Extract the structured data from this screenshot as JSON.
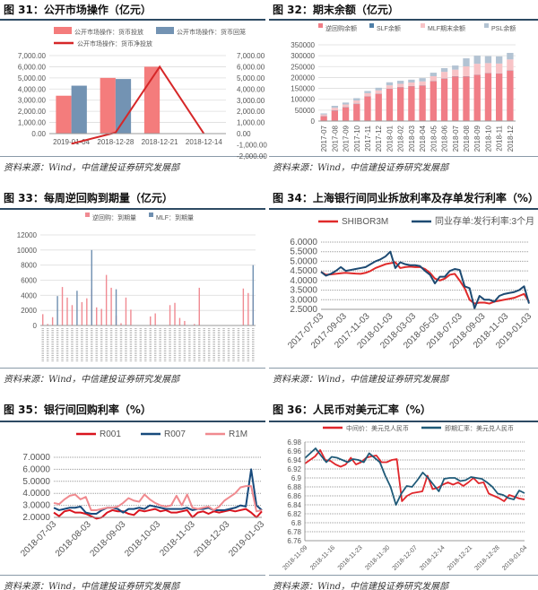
{
  "source": "资料来源：Wind，中信建投证券研究发展部",
  "chart_data": [
    {
      "id": "c31",
      "title": "图 31：公开市场操作（亿元）",
      "type": "bar+line",
      "categories": [
        "2019-01-04",
        "2018-12-28",
        "2018-12-21",
        "2018-12-14"
      ],
      "series": [
        {
          "name": "公开市场操作：货币投放",
          "kind": "bar",
          "axis": "left",
          "color": "#f47c7c",
          "values": [
            3400,
            5000,
            6000,
            0
          ]
        },
        {
          "name": "公开市场操作：货币回笼",
          "kind": "bar",
          "axis": "left",
          "color": "#7393b3",
          "values": [
            4300,
            4900,
            0,
            0
          ]
        },
        {
          "name": "公开市场操作：货币净投放",
          "kind": "line",
          "axis": "right",
          "color": "#d62728",
          "values": [
            -900,
            100,
            6000,
            0
          ]
        }
      ],
      "yticks": [
        "7,000.00",
        "6,000.00",
        "5,000.00",
        "4,000.00",
        "3,000.00",
        "2,000.00",
        "1,000.00",
        "0.00"
      ],
      "y2ticks": [
        "7,000.00",
        "6,000.00",
        "5,000.00",
        "4,000.00",
        "3,000.00",
        "2,000.00",
        "1,000.00",
        "0.00",
        "-1,000.00",
        "-2,000.00"
      ],
      "ylim": [
        0,
        7000
      ],
      "y2lim": [
        -2000,
        7000
      ]
    },
    {
      "id": "c32",
      "title": "图 32：期末余额（亿元）",
      "type": "stacked-bar",
      "categories": [
        "2017-07",
        "2017-08",
        "2017-09",
        "2017-10",
        "2017-11",
        "2017-12",
        "2018-01",
        "2018-02",
        "2018-03",
        "2018-04",
        "2018-05",
        "2018-06",
        "2018-07",
        "2018-08",
        "2018-09",
        "2018-10",
        "2018-11",
        "2018-12"
      ],
      "series": [
        {
          "name": "逆回购余额",
          "color": "#f07d86",
          "values": [
            22000,
            48000,
            63000,
            78000,
            113000,
            125000,
            148000,
            155000,
            160000,
            163000,
            183000,
            195000,
            205000,
            205000,
            212000,
            220000,
            218000,
            232000
          ]
        },
        {
          "name": "SLF余额",
          "color": "#4f7fa8",
          "values": [
            1000,
            1000,
            1000,
            1500,
            1000,
            1000,
            1000,
            1000,
            1000,
            1000,
            1000,
            1000,
            1000,
            1000,
            1000,
            1000,
            1000,
            1000
          ]
        },
        {
          "name": "MLF期末余额",
          "color": "#f8c3c6",
          "values": [
            7000,
            12000,
            12000,
            15000,
            14000,
            15000,
            15000,
            15000,
            16000,
            18000,
            22000,
            30000,
            30000,
            45000,
            50000,
            45000,
            45000,
            50000
          ]
        },
        {
          "name": "PSL余额",
          "color": "#b3c3d3",
          "values": [
            5000,
            9000,
            9000,
            10500,
            10000,
            12000,
            14000,
            14000,
            13000,
            15000,
            16000,
            17000,
            19000,
            37000,
            37000,
            32000,
            33000,
            30000
          ]
        }
      ],
      "yticks": [
        "350000",
        "300000",
        "250000",
        "200000",
        "150000",
        "100000",
        "50000",
        "0"
      ],
      "ylim": [
        0,
        350000
      ]
    },
    {
      "id": "c33",
      "title": "图 33：每周逆回购到期量（亿元）",
      "type": "bar",
      "series": [
        {
          "name": "逆回购：到期量",
          "color": "#f08a92",
          "values": [
            1500,
            200,
            1100,
            0,
            5100,
            3700,
            2700,
            0,
            3100,
            3600,
            4900,
            2400,
            2200,
            6700,
            5000,
            1300,
            300,
            3700,
            2100,
            0,
            0,
            0,
            1200,
            1600,
            0,
            0,
            2700,
            3000,
            1000,
            600,
            0,
            200,
            5000,
            0,
            0,
            0,
            0,
            0,
            0,
            0,
            0,
            4900,
            4300,
            4000
          ]
        },
        {
          "name": "MLF：到期量",
          "color": "#6f8fb0",
          "values": [
            0,
            0,
            0,
            3900,
            0,
            0,
            0,
            4600,
            0,
            0,
            10000,
            0,
            0,
            0,
            0,
            4800,
            0,
            0,
            0,
            0,
            0,
            0,
            0,
            0,
            0,
            0,
            0,
            0,
            0,
            0,
            0,
            0,
            0,
            0,
            0,
            0,
            0,
            0,
            0,
            0,
            0,
            0,
            0,
            8000
          ]
        }
      ],
      "yticks": [
        "12000",
        "10000",
        "8000",
        "6000",
        "4000",
        "2000",
        "0"
      ],
      "ylim": [
        0,
        12000
      ]
    },
    {
      "id": "c34",
      "title": "图 34：上海银行间同业拆放利率及存单发行利率（%）",
      "type": "line",
      "xticks": [
        "2017-07-03",
        "2017-09-03",
        "2017-11-03",
        "2018-01-03",
        "2018-03-03",
        "2018-05-03",
        "2018-07-03",
        "2018-09-03",
        "2018-11-03",
        "2019-01-03"
      ],
      "series": [
        {
          "name": "SHIBOR3M",
          "color": "#e02a2a",
          "values": [
            4.45,
            4.3,
            4.32,
            4.35,
            4.38,
            4.4,
            4.38,
            4.36,
            4.35,
            4.4,
            4.5,
            4.65,
            4.75,
            4.85,
            4.9,
            4.95,
            4.65,
            4.7,
            4.72,
            4.7,
            4.7,
            4.6,
            4.4,
            4.1,
            4.0,
            4.1,
            4.3,
            4.35,
            4.0,
            3.6,
            3.0,
            2.8,
            2.85,
            2.85,
            2.8,
            2.9,
            2.95,
            3.0,
            3.05,
            3.1,
            3.2,
            3.3,
            2.9
          ]
        },
        {
          "name": "同业存单:发行利率:3个月",
          "color": "#1d4a72",
          "values": [
            4.45,
            4.25,
            4.35,
            4.5,
            4.7,
            4.5,
            4.55,
            4.6,
            4.65,
            4.7,
            4.85,
            5.0,
            5.1,
            5.25,
            5.5,
            4.65,
            4.95,
            4.85,
            4.8,
            4.8,
            4.75,
            4.5,
            4.3,
            3.85,
            4.2,
            4.2,
            4.5,
            4.6,
            4.55,
            3.7,
            3.6,
            2.55,
            3.2,
            3.0,
            3.0,
            2.9,
            3.2,
            3.3,
            3.35,
            3.4,
            3.5,
            3.7,
            2.8
          ]
        }
      ],
      "yticks": [
        "6.0000",
        "5.5000",
        "5.0000",
        "4.5000",
        "4.0000",
        "3.5000",
        "3.0000",
        "2.5000"
      ],
      "ylim": [
        2.5,
        6.0
      ]
    },
    {
      "id": "c35",
      "title": "图 35：银行间回购利率（%）",
      "type": "line",
      "xticks": [
        "2018-07-03",
        "2018-08-03",
        "2018-09-03",
        "2018-10-03",
        "2018-11-03",
        "2018-12-03",
        "2019-01-03"
      ],
      "series": [
        {
          "name": "R001",
          "color": "#d9141e",
          "values": [
            2.4,
            2.1,
            2.5,
            2.6,
            2.4,
            2.4,
            2.3,
            2.1,
            1.9,
            2.0,
            2.4,
            2.6,
            2.5,
            2.5,
            2.3,
            2.2,
            2.6,
            2.5,
            2.6,
            2.7,
            2.5,
            2.6,
            2.4,
            2.4,
            2.5,
            2.6,
            2.0,
            2.4,
            2.5,
            2.3,
            2.5,
            2.4,
            2.5,
            2.6,
            2.5,
            2.6,
            2.7,
            2.4,
            2.0,
            2.5
          ]
        },
        {
          "name": "R007",
          "color": "#174a7c",
          "values": [
            2.8,
            2.6,
            2.7,
            2.8,
            2.8,
            2.9,
            2.4,
            2.3,
            2.3,
            2.6,
            2.8,
            2.8,
            2.7,
            2.4,
            2.7,
            2.7,
            2.8,
            2.7,
            3.0,
            2.9,
            2.8,
            2.7,
            2.7,
            2.7,
            2.7,
            2.8,
            2.6,
            2.7,
            2.7,
            2.8,
            2.6,
            2.6,
            2.6,
            2.7,
            2.8,
            3.0,
            2.9,
            6.0,
            3.0,
            2.6
          ]
        },
        {
          "name": "R1M",
          "color": "#f08a8f",
          "values": [
            3.2,
            3.1,
            3.5,
            3.8,
            3.9,
            3.5,
            3.7,
            2.6,
            2.6,
            2.7,
            2.8,
            2.8,
            2.9,
            3.2,
            3.6,
            3.4,
            3.3,
            3.9,
            3.5,
            3.2,
            3.0,
            2.9,
            3.0,
            3.8,
            3.0,
            3.9,
            2.8,
            2.7,
            2.8,
            2.9,
            2.6,
            2.9,
            3.4,
            3.7,
            4.0,
            4.5,
            4.6,
            4.6,
            2.5,
            2.6
          ]
        }
      ],
      "yticks": [
        "7.0000",
        "6.0000",
        "5.0000",
        "4.0000",
        "3.0000",
        "2.0000"
      ],
      "ylim": [
        2,
        7
      ]
    },
    {
      "id": "c36",
      "title": "图 36：人民币对美元汇率（%）",
      "type": "line",
      "xticks": [
        "2018-11-09",
        "2018-11-16",
        "2018-11-23",
        "2018-11-30",
        "2018-12-07",
        "2018-12-14",
        "2018-12-21",
        "2018-12-28",
        "2019-01-04"
      ],
      "series": [
        {
          "name": "中间价：美元兑人民币",
          "color": "#e0262b",
          "values": [
            6.932,
            6.94,
            6.948,
            6.962,
            6.94,
            6.938,
            6.93,
            6.925,
            6.93,
            6.945,
            6.93,
            6.935,
            6.945,
            6.948,
            6.95,
            6.935,
            6.935,
            6.94,
            6.942,
            6.848,
            6.86,
            6.866,
            6.868,
            6.87,
            6.905,
            6.875,
            6.878,
            6.885,
            6.89,
            6.885,
            6.89,
            6.882,
            6.89,
            6.9,
            6.888,
            6.89,
            6.865,
            6.86,
            6.855,
            6.848,
            6.862,
            6.858,
            6.854,
            6.852
          ]
        },
        {
          "name": "即期汇率：美元兑人民币",
          "color": "#1f5a78",
          "values": [
            6.944,
            6.955,
            6.966,
            6.95,
            6.935,
            6.947,
            6.945,
            6.94,
            6.935,
            6.942,
            6.94,
            6.935,
            6.955,
            6.945,
            6.935,
            6.905,
            6.88,
            6.84,
            6.865,
            6.882,
            6.88,
            6.895,
            6.912,
            6.9,
            6.885,
            6.87,
            6.898,
            6.9,
            6.9,
            6.893,
            6.895,
            6.902,
            6.9,
            6.898,
            6.89,
            6.88,
            6.865,
            6.862,
            6.855,
            6.852,
            6.872,
            6.866
          ]
        }
      ],
      "yticks": [
        "6.98",
        "6.96",
        "6.94",
        "6.92",
        "6.9",
        "6.88",
        "6.86",
        "6.84",
        "6.82",
        "6.8",
        "6.78",
        "6.76"
      ],
      "ylim": [
        6.76,
        6.98
      ]
    }
  ]
}
